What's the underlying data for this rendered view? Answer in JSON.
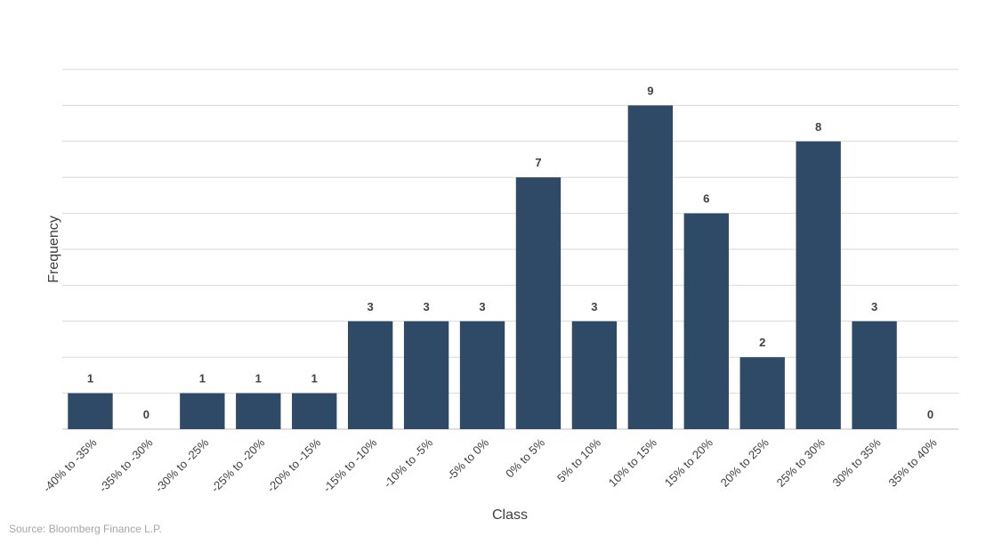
{
  "chart_data": {
    "type": "bar",
    "categories": [
      "-40% to -35%",
      "-35% to -30%",
      "-30% to -25%",
      "-25% to -20%",
      "-20% to -15%",
      "-15% to -10%",
      "-10% to -5%",
      "-5% to 0%",
      "0% to 5%",
      "5% to 10%",
      "10% to 15%",
      "15% to 20%",
      "20% to 25%",
      "25% to 30%",
      "30% to 35%",
      "35% to 40%"
    ],
    "values": [
      1,
      0,
      1,
      1,
      1,
      3,
      3,
      3,
      7,
      3,
      9,
      6,
      2,
      8,
      3,
      0
    ],
    "xlabel": "Class",
    "ylabel": "Frequency",
    "ylim": [
      0,
      10
    ],
    "grid": true,
    "legend": "none",
    "bar_color": "#2f4a66"
  },
  "source": "Source: Bloomberg Finance L.P."
}
